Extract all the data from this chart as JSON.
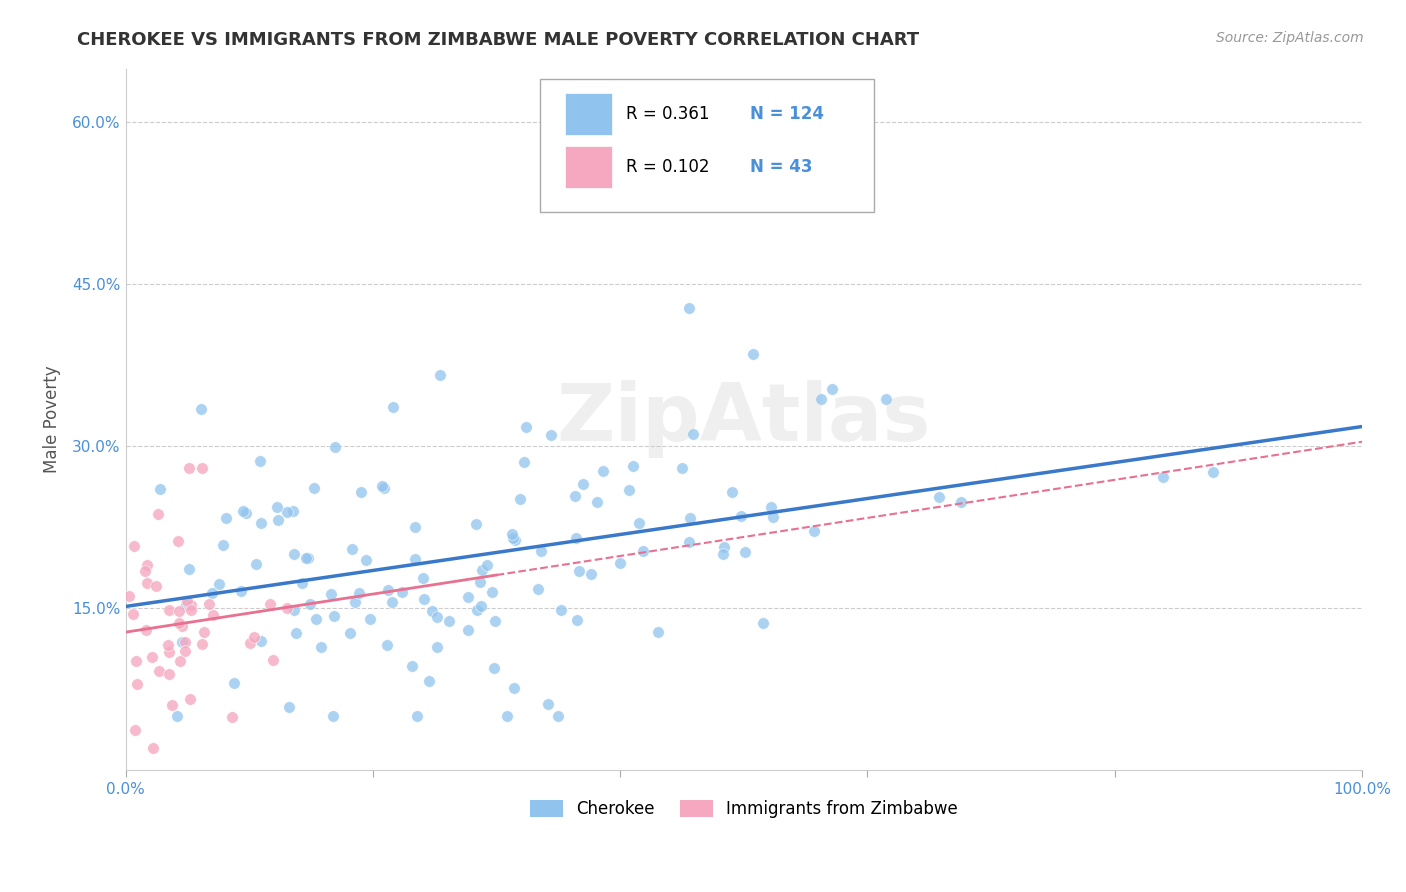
{
  "title": "CHEROKEE VS IMMIGRANTS FROM ZIMBABWE MALE POVERTY CORRELATION CHART",
  "source": "Source: ZipAtlas.com",
  "ylabel": "Male Poverty",
  "xlim": [
    0.0,
    1.0
  ],
  "ylim": [
    0.0,
    0.65
  ],
  "yticks": [
    0.15,
    0.3,
    0.45,
    0.6
  ],
  "ytick_labels": [
    "15.0%",
    "30.0%",
    "45.0%",
    "60.0%"
  ],
  "cherokee_color": "#90C4EE",
  "zimbabwe_color": "#F5A8C0",
  "cherokee_line_color": "#3A78C9",
  "zimbabwe_line_color": "#E87090",
  "cherokee_R": 0.361,
  "cherokee_N": 124,
  "zimbabwe_R": 0.102,
  "zimbabwe_N": 43,
  "background_color": "#FFFFFF",
  "grid_color": "#CCCCCC",
  "title_color": "#333333",
  "source_color": "#999999",
  "ylabel_color": "#555555",
  "ytick_color": "#4A90D9",
  "xtick_color": "#4A90D9"
}
